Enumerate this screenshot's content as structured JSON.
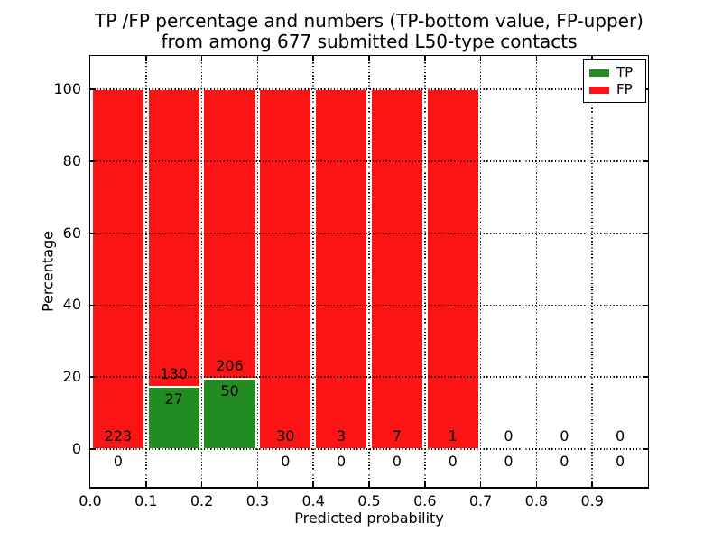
{
  "title": {
    "line1": "TP /FP percentage and numbers (TP-bottom value, FP-upper)",
    "line2": "from among 677 submitted L50-type contacts"
  },
  "axes": {
    "ylabel": "Percentage",
    "xlabel": "Predicted probability"
  },
  "legend": {
    "position": "upper right",
    "entries": [
      {
        "label": "TP",
        "color": "#228B22"
      },
      {
        "label": "FP",
        "color": "#FA1414"
      }
    ]
  },
  "chart_data": {
    "type": "bar",
    "stacked": true,
    "title": "TP /FP percentage and numbers (TP-bottom value, FP-upper) from among 677 submitted L50-type contacts",
    "xlabel": "Predicted probability",
    "ylabel": "Percentage",
    "total_contacts": 677,
    "categories": [
      "0.0-0.1",
      "0.1-0.2",
      "0.2-0.3",
      "0.3-0.4",
      "0.4-0.5",
      "0.5-0.6",
      "0.6-0.7",
      "0.7-0.8",
      "0.8-0.9",
      "0.9-1.0"
    ],
    "bin_centers": [
      0.05,
      0.15,
      0.25,
      0.35,
      0.45,
      0.55,
      0.65,
      0.75,
      0.85,
      0.95
    ],
    "series": [
      {
        "name": "TP",
        "color": "#228B22",
        "counts": [
          0,
          27,
          50,
          0,
          0,
          0,
          0,
          0,
          0,
          0
        ]
      },
      {
        "name": "FP",
        "color": "#FA1414",
        "counts": [
          223,
          130,
          206,
          30,
          3,
          7,
          1,
          0,
          0,
          0
        ]
      }
    ],
    "bar_height_rule": "green TP bar = TP/(TP+FP)*100 percent, red FP bar fills up to 100 percent; bins with zero contacts have no bar",
    "tp_percent_displayed": [
      0,
      17.2,
      19.5,
      0,
      0,
      0,
      0,
      0,
      0,
      0
    ],
    "xlim": [
      0.0,
      1.0
    ],
    "ylim": [
      -11,
      109
    ],
    "y_ticks": [
      0,
      20,
      40,
      60,
      80,
      100
    ],
    "x_tick_labels": [
      "0.0",
      "0.1",
      "0.2",
      "0.3",
      "0.4",
      "0.5",
      "0.6",
      "0.7",
      "0.8",
      "0.9"
    ],
    "grid": "dotted both axes",
    "legend_position": "upper right"
  }
}
